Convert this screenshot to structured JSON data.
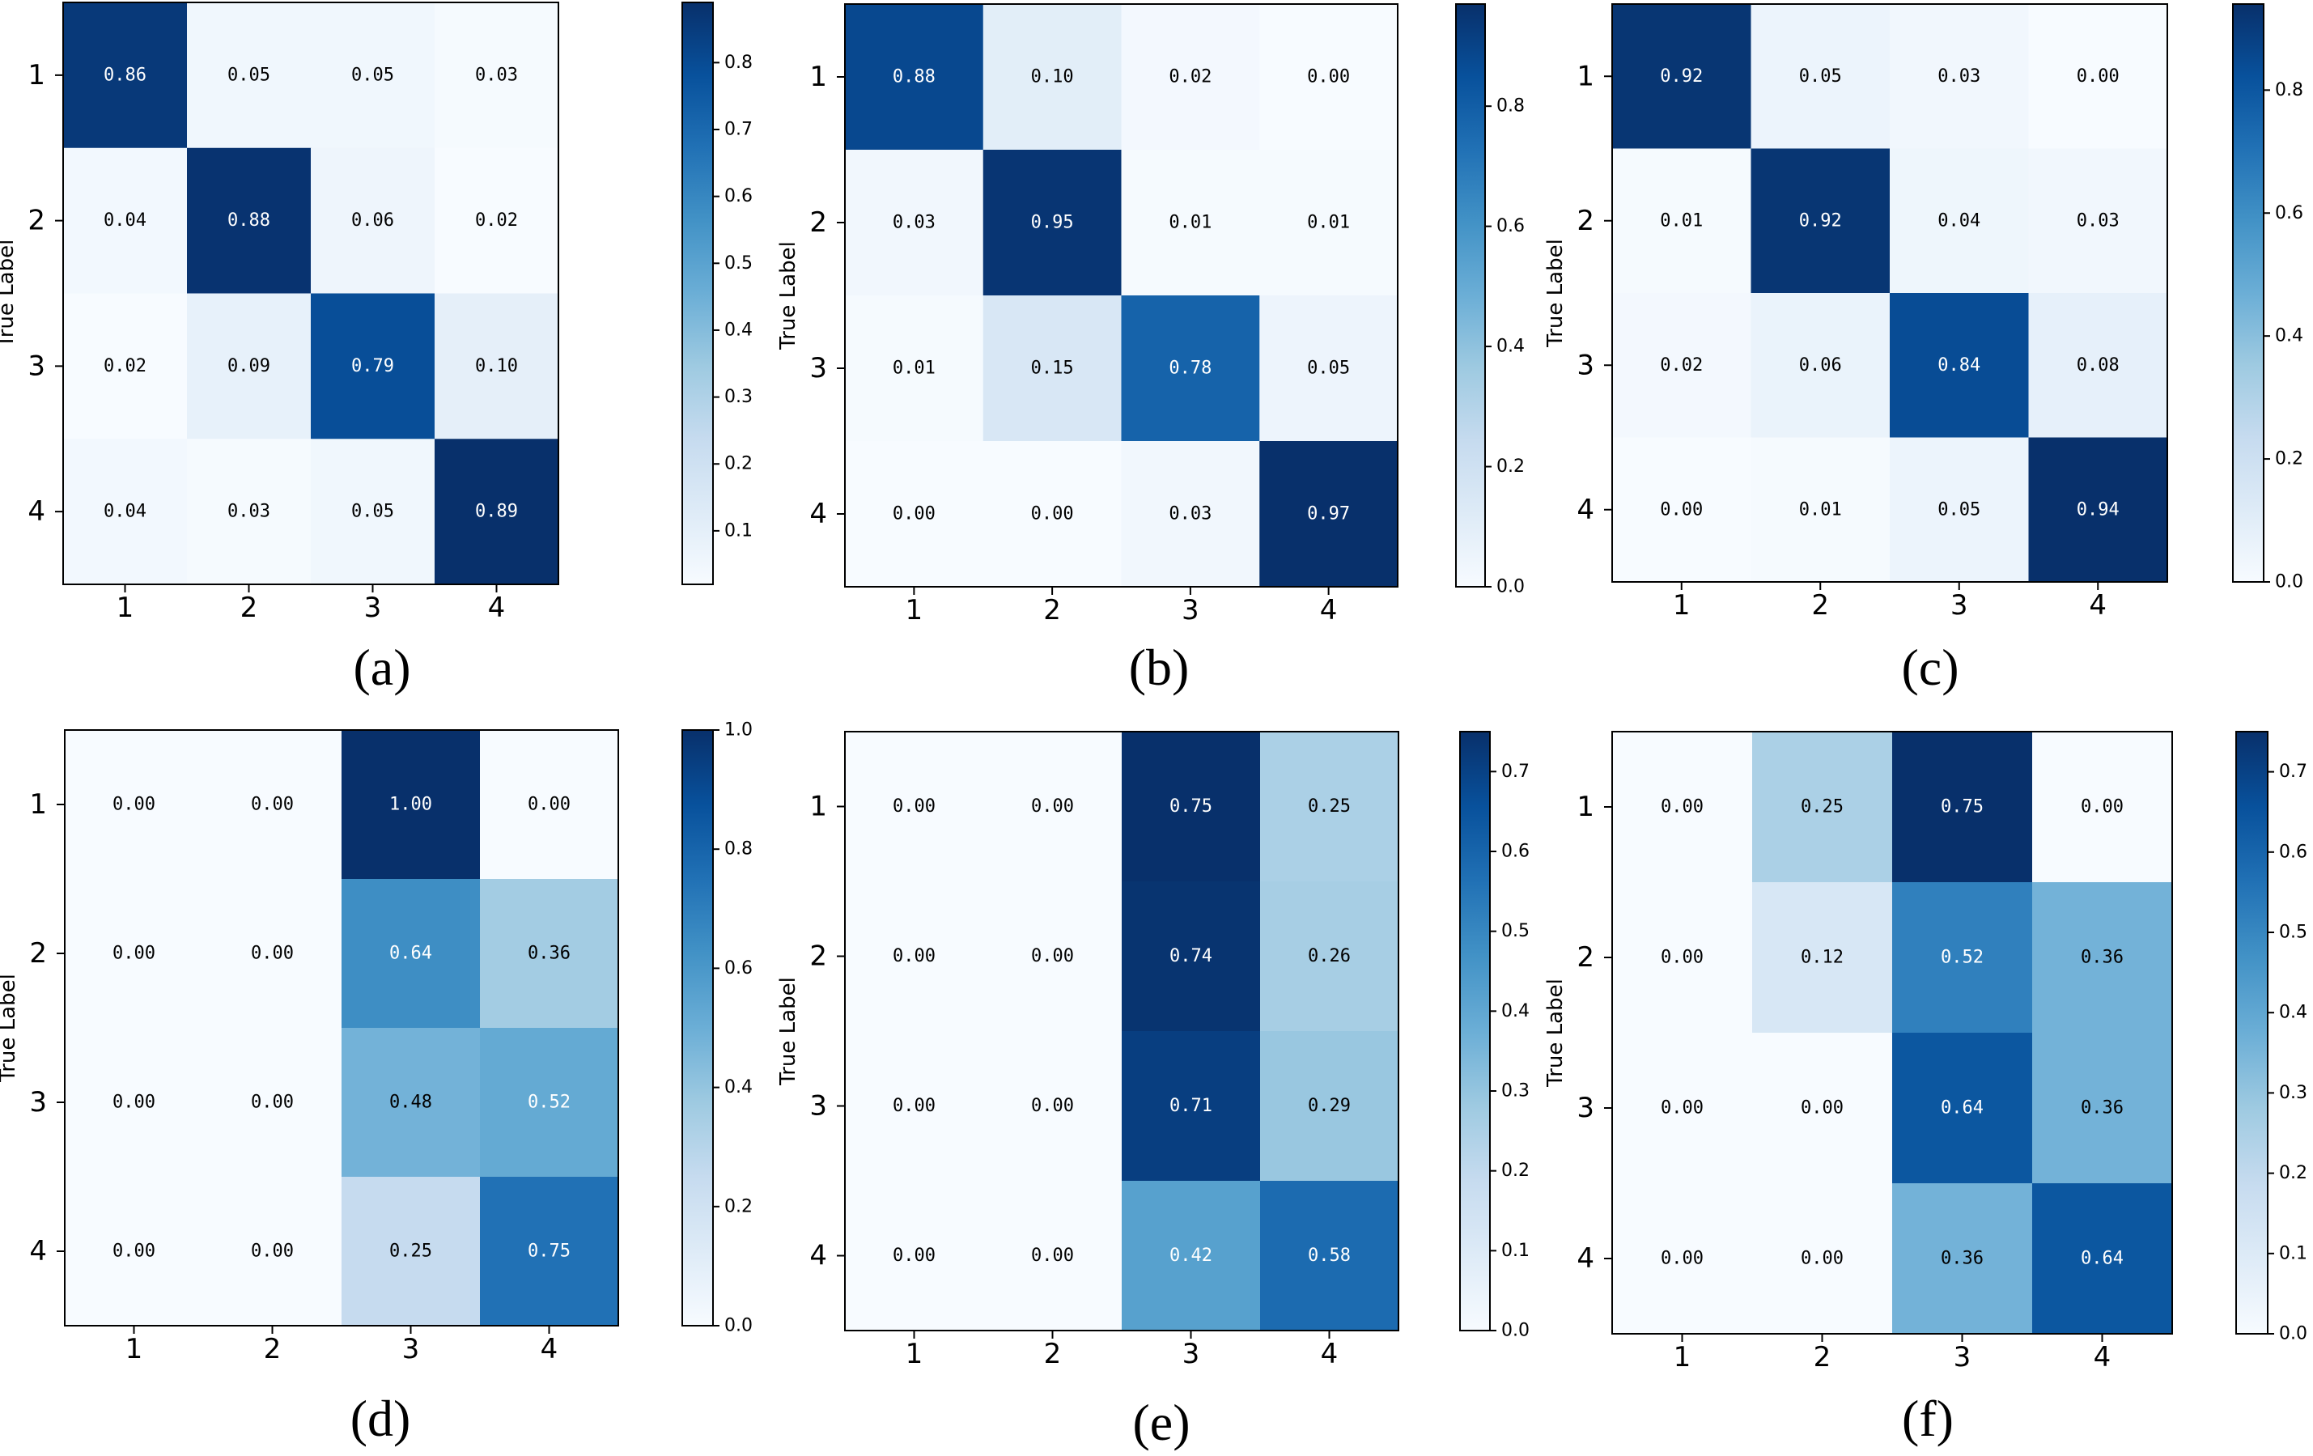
{
  "chart_data": [
    {
      "type": "heatmap",
      "caption": "(a)",
      "ylabel": "True Label",
      "categories": [
        "1",
        "2",
        "3",
        "4"
      ],
      "values": [
        [
          0.86,
          0.05,
          0.05,
          0.03
        ],
        [
          0.04,
          0.88,
          0.06,
          0.02
        ],
        [
          0.02,
          0.09,
          0.79,
          0.1
        ],
        [
          0.04,
          0.03,
          0.05,
          0.89
        ]
      ],
      "cell_labels": [
        [
          "0.86",
          "0.05",
          "0.05",
          "0.03"
        ],
        [
          "0.04",
          "0.88",
          "0.06",
          "0.02"
        ],
        [
          "0.02",
          "0.09",
          "0.79",
          "0.10"
        ],
        [
          "0.04",
          "0.03",
          "0.05",
          "0.89"
        ]
      ],
      "colorbar": {
        "min": 0.02,
        "max": 0.89,
        "ticks": [
          0.1,
          0.2,
          0.3,
          0.4,
          0.5,
          0.6,
          0.7,
          0.8
        ],
        "tick_labels": [
          "0.1",
          "0.2",
          "0.3",
          "0.4",
          "0.5",
          "0.6",
          "0.7",
          "0.8"
        ]
      }
    },
    {
      "type": "heatmap",
      "caption": "(b)",
      "ylabel": "True Label",
      "categories": [
        "1",
        "2",
        "3",
        "4"
      ],
      "values": [
        [
          0.88,
          0.1,
          0.02,
          0.0
        ],
        [
          0.03,
          0.95,
          0.01,
          0.01
        ],
        [
          0.01,
          0.15,
          0.78,
          0.05
        ],
        [
          0.0,
          0.0,
          0.03,
          0.97
        ]
      ],
      "cell_labels": [
        [
          "0.88",
          "0.10",
          "0.02",
          "0.00"
        ],
        [
          "0.03",
          "0.95",
          "0.01",
          "0.01"
        ],
        [
          "0.01",
          "0.15",
          "0.78",
          "0.05"
        ],
        [
          "0.00",
          "0.00",
          "0.03",
          "0.97"
        ]
      ],
      "colorbar": {
        "min": 0.0,
        "max": 0.97,
        "ticks": [
          0.0,
          0.2,
          0.4,
          0.6,
          0.8
        ],
        "tick_labels": [
          "0.0",
          "0.2",
          "0.4",
          "0.6",
          "0.8"
        ]
      }
    },
    {
      "type": "heatmap",
      "caption": "(c)",
      "ylabel": "True Label",
      "categories": [
        "1",
        "2",
        "3",
        "4"
      ],
      "values": [
        [
          0.92,
          0.05,
          0.03,
          0.0
        ],
        [
          0.01,
          0.92,
          0.04,
          0.03
        ],
        [
          0.02,
          0.06,
          0.84,
          0.08
        ],
        [
          0.0,
          0.01,
          0.05,
          0.94
        ]
      ],
      "cell_labels": [
        [
          "0.92",
          "0.05",
          "0.03",
          "0.00"
        ],
        [
          "0.01",
          "0.92",
          "0.04",
          "0.03"
        ],
        [
          "0.02",
          "0.06",
          "0.84",
          "0.08"
        ],
        [
          "0.00",
          "0.01",
          "0.05",
          "0.94"
        ]
      ],
      "colorbar": {
        "min": 0.0,
        "max": 0.94,
        "ticks": [
          0.0,
          0.2,
          0.4,
          0.6,
          0.8
        ],
        "tick_labels": [
          "0.0",
          "0.2",
          "0.4",
          "0.6",
          "0.8"
        ]
      }
    },
    {
      "type": "heatmap",
      "caption": "(d)",
      "ylabel": "True Label",
      "categories": [
        "1",
        "2",
        "3",
        "4"
      ],
      "values": [
        [
          0.0,
          0.0,
          1.0,
          0.0
        ],
        [
          0.0,
          0.0,
          0.64,
          0.36
        ],
        [
          0.0,
          0.0,
          0.48,
          0.52
        ],
        [
          0.0,
          0.0,
          0.25,
          0.75
        ]
      ],
      "cell_labels": [
        [
          "0.00",
          "0.00",
          "1.00",
          "0.00"
        ],
        [
          "0.00",
          "0.00",
          "0.64",
          "0.36"
        ],
        [
          "0.00",
          "0.00",
          "0.48",
          "0.52"
        ],
        [
          "0.00",
          "0.00",
          "0.25",
          "0.75"
        ]
      ],
      "colorbar": {
        "min": 0.0,
        "max": 1.0,
        "ticks": [
          0.0,
          0.2,
          0.4,
          0.6,
          0.8,
          1.0
        ],
        "tick_labels": [
          "0.0",
          "0.2",
          "0.4",
          "0.6",
          "0.8",
          "1.0"
        ]
      }
    },
    {
      "type": "heatmap",
      "caption": "(e)",
      "ylabel": "True Label",
      "categories": [
        "1",
        "2",
        "3",
        "4"
      ],
      "values": [
        [
          0.0,
          0.0,
          0.75,
          0.25
        ],
        [
          0.0,
          0.0,
          0.74,
          0.26
        ],
        [
          0.0,
          0.0,
          0.71,
          0.29
        ],
        [
          0.0,
          0.0,
          0.42,
          0.58
        ]
      ],
      "cell_labels": [
        [
          "0.00",
          "0.00",
          "0.75",
          "0.25"
        ],
        [
          "0.00",
          "0.00",
          "0.74",
          "0.26"
        ],
        [
          "0.00",
          "0.00",
          "0.71",
          "0.29"
        ],
        [
          "0.00",
          "0.00",
          "0.42",
          "0.58"
        ]
      ],
      "colorbar": {
        "min": 0.0,
        "max": 0.75,
        "ticks": [
          0.0,
          0.1,
          0.2,
          0.3,
          0.4,
          0.5,
          0.6,
          0.7
        ],
        "tick_labels": [
          "0.0",
          "0.1",
          "0.2",
          "0.3",
          "0.4",
          "0.5",
          "0.6",
          "0.7"
        ]
      }
    },
    {
      "type": "heatmap",
      "caption": "(f)",
      "ylabel": "True Label",
      "categories": [
        "1",
        "2",
        "3",
        "4"
      ],
      "values": [
        [
          0.0,
          0.25,
          0.75,
          0.0
        ],
        [
          0.0,
          0.12,
          0.52,
          0.36
        ],
        [
          0.0,
          0.0,
          0.64,
          0.36
        ],
        [
          0.0,
          0.0,
          0.36,
          0.64
        ]
      ],
      "cell_labels": [
        [
          "0.00",
          "0.25",
          "0.75",
          "0.00"
        ],
        [
          "0.00",
          "0.12",
          "0.52",
          "0.36"
        ],
        [
          "0.00",
          "0.00",
          "0.64",
          "0.36"
        ],
        [
          "0.00",
          "0.00",
          "0.36",
          "0.64"
        ]
      ],
      "colorbar": {
        "min": 0.0,
        "max": 0.75,
        "ticks": [
          0.0,
          0.1,
          0.2,
          0.3,
          0.4,
          0.5,
          0.6,
          0.7
        ],
        "tick_labels": [
          "0.0",
          "0.1",
          "0.2",
          "0.3",
          "0.4",
          "0.5",
          "0.6",
          "0.7"
        ]
      }
    }
  ],
  "colormap": [
    "#f7fbff",
    "#deebf7",
    "#c6dbef",
    "#9ecae1",
    "#6baed6",
    "#4292c6",
    "#2171b5",
    "#08519c",
    "#08306b"
  ]
}
